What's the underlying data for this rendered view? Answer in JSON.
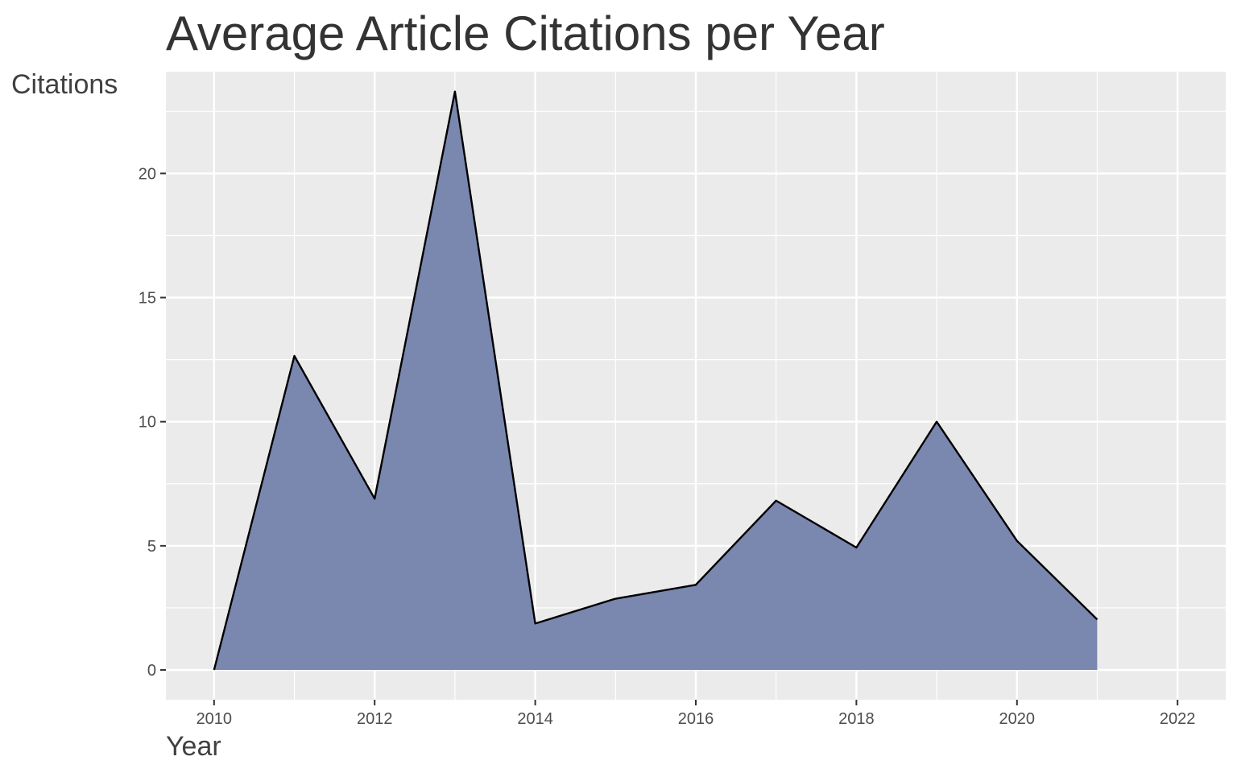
{
  "chart_data": {
    "type": "area",
    "title": "Average Article Citations per Year",
    "xlabel": "Year",
    "ylabel": "Citations",
    "x": [
      2010,
      2011,
      2012,
      2013,
      2014,
      2015,
      2016,
      2017,
      2018,
      2019,
      2020,
      2021
    ],
    "series": [
      {
        "values": [
          0,
          12.65,
          6.9,
          23.3,
          1.87,
          2.87,
          3.43,
          6.82,
          4.93,
          10.0,
          5.2,
          2.03
        ]
      }
    ],
    "xlim": [
      2009.4,
      2022.6
    ],
    "ylim": [
      -1.2,
      24.1
    ],
    "x_ticks": [
      2010,
      2012,
      2014,
      2016,
      2018,
      2020,
      2022
    ],
    "y_ticks": [
      0,
      5,
      10,
      15,
      20
    ],
    "grid": true,
    "legend": "none",
    "colors": {
      "panel_background": "#ebebeb",
      "grid": "#ffffff",
      "area_fill": "#7683ac",
      "line": "#000000"
    }
  }
}
